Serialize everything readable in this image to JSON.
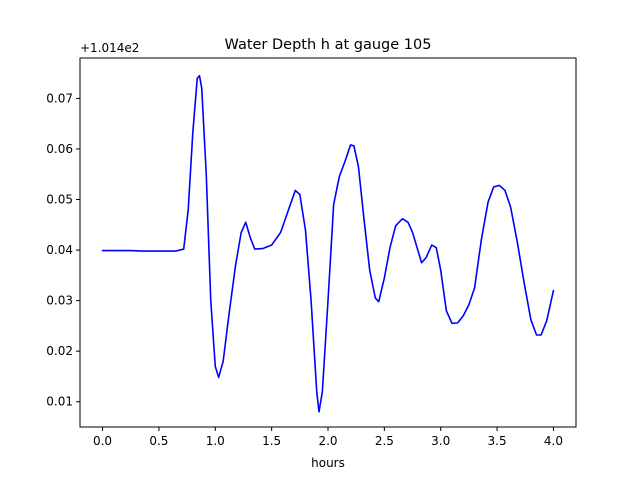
{
  "chart_data": {
    "type": "line",
    "title": "Water Depth h at gauge 105",
    "xlabel": "hours",
    "ylabel": "",
    "offset_label": "+1.014e2",
    "xlim": [
      -0.2,
      4.2
    ],
    "ylim": [
      0.005,
      0.078
    ],
    "xticks": [
      0.0,
      0.5,
      1.0,
      1.5,
      2.0,
      2.5,
      3.0,
      3.5,
      4.0
    ],
    "xtick_labels": [
      "0.0",
      "0.5",
      "1.0",
      "1.5",
      "2.0",
      "2.5",
      "3.0",
      "3.5",
      "4.0"
    ],
    "yticks": [
      0.01,
      0.02,
      0.03,
      0.04,
      0.05,
      0.06,
      0.07
    ],
    "ytick_labels": [
      "0.01",
      "0.02",
      "0.03",
      "0.04",
      "0.05",
      "0.06",
      "0.07"
    ],
    "grid": false,
    "legend": "none",
    "series": [
      {
        "color": "#0000ff",
        "x": [
          0.0,
          0.25,
          0.35,
          0.5,
          0.65,
          0.72,
          0.76,
          0.8,
          0.84,
          0.86,
          0.88,
          0.92,
          0.96,
          1.0,
          1.03,
          1.07,
          1.12,
          1.18,
          1.23,
          1.27,
          1.31,
          1.35,
          1.42,
          1.5,
          1.58,
          1.65,
          1.71,
          1.75,
          1.8,
          1.85,
          1.9,
          1.92,
          1.95,
          2.0,
          2.05,
          2.1,
          2.15,
          2.2,
          2.23,
          2.27,
          2.32,
          2.37,
          2.42,
          2.45,
          2.5,
          2.55,
          2.6,
          2.66,
          2.71,
          2.75,
          2.79,
          2.83,
          2.87,
          2.92,
          2.96,
          3.0,
          3.05,
          3.1,
          3.15,
          3.2,
          3.25,
          3.3,
          3.36,
          3.42,
          3.47,
          3.52,
          3.57,
          3.62,
          3.68,
          3.74,
          3.8,
          3.85,
          3.89,
          3.94,
          4.0
        ],
        "y": [
          0.0399,
          0.0399,
          0.0398,
          0.0398,
          0.0398,
          0.0402,
          0.048,
          0.063,
          0.074,
          0.0745,
          0.072,
          0.055,
          0.03,
          0.017,
          0.0148,
          0.018,
          0.027,
          0.037,
          0.0435,
          0.0455,
          0.0425,
          0.0402,
          0.0403,
          0.041,
          0.0435,
          0.048,
          0.0518,
          0.051,
          0.044,
          0.03,
          0.012,
          0.008,
          0.012,
          0.03,
          0.049,
          0.0545,
          0.0575,
          0.0608,
          0.0606,
          0.0565,
          0.046,
          0.036,
          0.0305,
          0.0298,
          0.0345,
          0.0405,
          0.0448,
          0.0462,
          0.0455,
          0.0435,
          0.0405,
          0.0375,
          0.0385,
          0.041,
          0.0405,
          0.036,
          0.028,
          0.0255,
          0.0256,
          0.027,
          0.0292,
          0.0325,
          0.042,
          0.0495,
          0.0525,
          0.0528,
          0.0518,
          0.0485,
          0.0415,
          0.0335,
          0.0262,
          0.0232,
          0.0232,
          0.026,
          0.032
        ]
      }
    ]
  }
}
